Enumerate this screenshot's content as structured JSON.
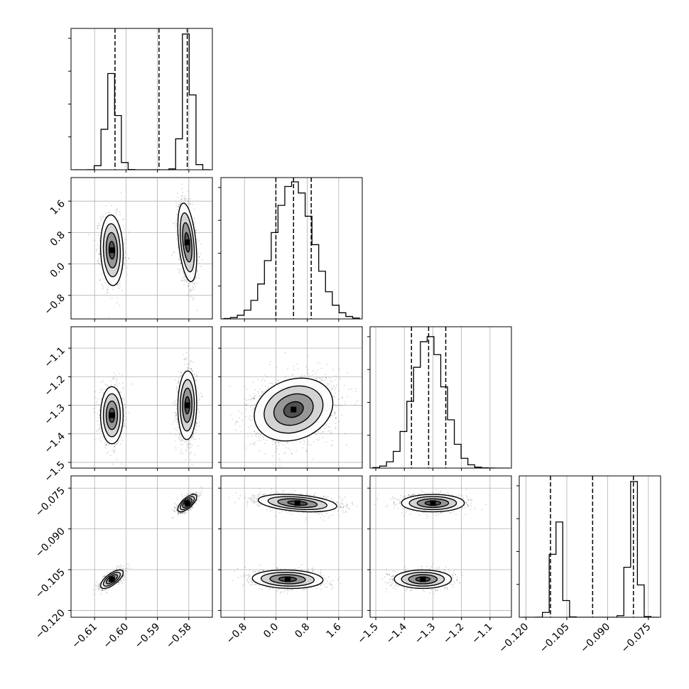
{
  "chart_data": {
    "type": "corner",
    "params": [
      {
        "ticks": [
          -0.61,
          -0.6,
          -0.59,
          -0.58
        ],
        "tick_labels": [
          "−0.61",
          "−0.60",
          "−0.59",
          "−0.58"
        ],
        "range": [
          -0.6175,
          -0.5725
        ],
        "modes": [
          {
            "mean": -0.6045,
            "sd": 0.0018,
            "w": 0.45
          },
          {
            "mean": -0.5805,
            "sd": 0.0015,
            "w": 0.55
          }
        ],
        "quantiles": [
          -0.6035,
          -0.5895,
          -0.5805
        ],
        "hist_peak": 0.96
      },
      {
        "ticks": [
          -0.8,
          0.0,
          0.8,
          1.6
        ],
        "tick_labels": [
          "−0.8",
          "0.0",
          "0.8",
          "1.6"
        ],
        "range": [
          -1.4,
          2.2
        ],
        "modes": [
          {
            "mean": 0.45,
            "sd": 0.5,
            "w": 1
          }
        ],
        "quantiles": [
          0.0,
          0.45,
          0.9
        ],
        "hist_peak": 0.97
      },
      {
        "ticks": [
          -1.5,
          -1.4,
          -1.3,
          -1.2,
          -1.1
        ],
        "tick_labels": [
          "−1.5",
          "−1.4",
          "−1.3",
          "−1.2",
          "−1.1"
        ],
        "range": [
          -1.52,
          -1.025
        ],
        "modes": [
          {
            "mean": -1.315,
            "sd": 0.055,
            "w": 1
          }
        ],
        "quantiles": [
          -1.375,
          -1.315,
          -1.255
        ],
        "hist_peak": 0.93
      },
      {
        "ticks": [
          -0.12,
          -0.105,
          -0.09,
          -0.075
        ],
        "tick_labels": [
          "−0.120",
          "−0.105",
          "−0.090",
          "−0.075"
        ],
        "range": [
          -0.1225,
          -0.0705
        ],
        "modes": [
          {
            "mean": -0.1085,
            "sd": 0.0017,
            "w": 0.45
          },
          {
            "mean": -0.0805,
            "sd": 0.0016,
            "w": 0.55
          }
        ],
        "quantiles": [
          -0.111,
          -0.0955,
          -0.0805
        ],
        "hist_peak": 0.96
      }
    ],
    "pair_modes": {
      "1-0": [
        {
          "mx": -0.6045,
          "my": 0.35,
          "sx": 0.0018,
          "sy": 0.45,
          "rho": -0.1,
          "w": 0.45
        },
        {
          "mx": -0.5805,
          "my": 0.55,
          "sx": 0.0015,
          "sy": 0.5,
          "rho": -0.4,
          "w": 0.55
        }
      ],
      "2-0": [
        {
          "mx": -0.6045,
          "my": -1.335,
          "sx": 0.0018,
          "sy": 0.05,
          "rho": 0.0,
          "w": 0.45
        },
        {
          "mx": -0.5805,
          "my": -1.3,
          "sx": 0.0015,
          "sy": 0.06,
          "rho": 0.05,
          "w": 0.55
        }
      ],
      "2-1": [
        {
          "mx": 0.45,
          "my": -1.315,
          "sx": 0.5,
          "sy": 0.055,
          "rho": 0.2,
          "w": 1
        }
      ],
      "3-0": [
        {
          "mx": -0.6045,
          "my": -0.1085,
          "sx": 0.0018,
          "sy": 0.0017,
          "rho": 0.7,
          "w": 0.45
        },
        {
          "mx": -0.5805,
          "my": -0.0805,
          "sx": 0.0015,
          "sy": 0.0016,
          "rho": 0.7,
          "w": 0.55
        }
      ],
      "3-1": [
        {
          "mx": 0.3,
          "my": -0.1085,
          "sx": 0.45,
          "sy": 0.0017,
          "rho": -0.1,
          "w": 0.45
        },
        {
          "mx": 0.55,
          "my": -0.0805,
          "sx": 0.5,
          "sy": 0.0016,
          "rho": -0.35,
          "w": 0.55
        }
      ],
      "3-2": [
        {
          "mx": -1.335,
          "my": -0.1085,
          "sx": 0.05,
          "sy": 0.0017,
          "rho": 0.0,
          "w": 0.45
        },
        {
          "mx": -1.3,
          "my": -0.0805,
          "sx": 0.055,
          "sy": 0.0016,
          "rho": 0.0,
          "w": 0.55
        }
      ]
    },
    "contour_levels_sigma": [
      0.5,
      1.0,
      1.5,
      2.0
    ],
    "n_samples_per_panel": 2200,
    "hist_bins": 20,
    "grid": true
  }
}
